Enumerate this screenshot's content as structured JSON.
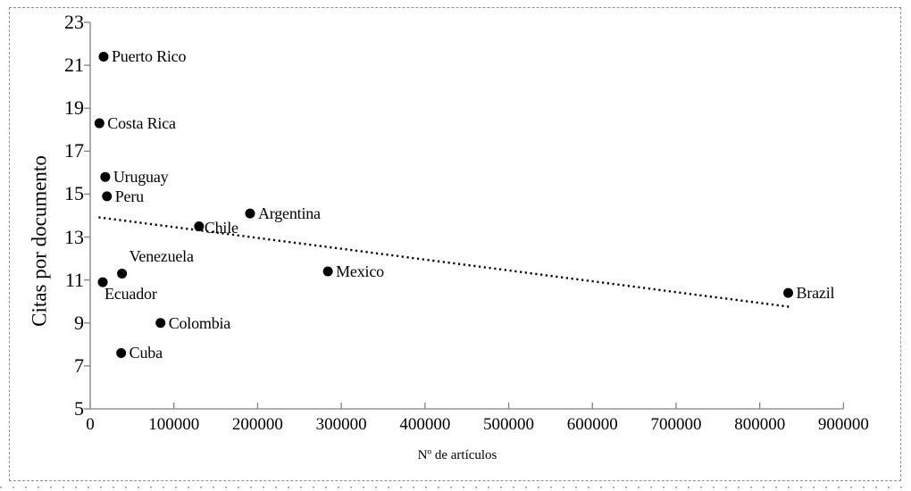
{
  "figure": {
    "background": "#ffffff",
    "frame_color": "#8f8f8f"
  },
  "chart_data": {
    "type": "scatter",
    "title": "",
    "xlabel": "Nº de artículos",
    "ylabel": "Citas por documento",
    "xlim": [
      0,
      900000
    ],
    "ylim": [
      5,
      23
    ],
    "x_ticks": [
      0,
      100000,
      200000,
      300000,
      400000,
      500000,
      600000,
      700000,
      800000,
      900000
    ],
    "y_ticks": [
      5,
      7,
      9,
      11,
      13,
      15,
      17,
      19,
      21,
      23
    ],
    "grid": false,
    "legend": "none",
    "points": [
      {
        "label": "Puerto Rico",
        "x": 16000,
        "y": 21.4,
        "label_pos": "right"
      },
      {
        "label": "Costa Rica",
        "x": 11000,
        "y": 18.3,
        "label_pos": "right"
      },
      {
        "label": "Uruguay",
        "x": 18000,
        "y": 15.8,
        "label_pos": "right"
      },
      {
        "label": "Peru",
        "x": 20000,
        "y": 14.9,
        "label_pos": "right"
      },
      {
        "label": "Argentina",
        "x": 191000,
        "y": 14.1,
        "label_pos": "right"
      },
      {
        "label": "Chile",
        "x": 130000,
        "y": 13.5,
        "label_pos": "right-tight"
      },
      {
        "label": "Venezuela",
        "x": 38000,
        "y": 11.3,
        "label_pos": "above-right"
      },
      {
        "label": "Ecuador",
        "x": 15000,
        "y": 10.9,
        "label_pos": "below"
      },
      {
        "label": "Mexico",
        "x": 284000,
        "y": 11.4,
        "label_pos": "right"
      },
      {
        "label": "Colombia",
        "x": 84000,
        "y": 9.0,
        "label_pos": "right"
      },
      {
        "label": "Cuba",
        "x": 37000,
        "y": 7.6,
        "label_pos": "right"
      },
      {
        "label": "Brazil",
        "x": 834000,
        "y": 10.4,
        "label_pos": "right"
      }
    ],
    "trendline": {
      "style": "dotted",
      "x1": 10000,
      "y1": 13.92,
      "x2": 836000,
      "y2": 9.75
    },
    "colors": {
      "point": "#000000",
      "trendline": "#000000",
      "axis": "#808080",
      "text": "#000000"
    }
  }
}
